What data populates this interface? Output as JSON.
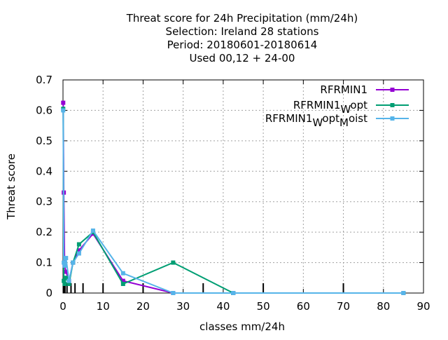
{
  "chart_data": {
    "type": "line",
    "title_lines": [
      "Threat score  for 24h Precipitation (mm/24h)",
      "Selection: Ireland      28 stations",
      "Period: 20180601-20180614",
      "Used  00,12  + 24-00"
    ],
    "xlabel": "classes mm/24h",
    "ylabel": "Threat score",
    "xlim": [
      0,
      90
    ],
    "ylim": [
      0,
      0.7
    ],
    "xticks": [
      0,
      10,
      20,
      30,
      40,
      50,
      60,
      70,
      80,
      90
    ],
    "yticks": [
      0,
      0.1,
      0.2,
      0.3,
      0.4,
      0.5,
      0.6,
      0.7
    ],
    "grid": true,
    "legend_position": "top-right",
    "class_marks": [
      0.1,
      0.3,
      0.5,
      1,
      2,
      3,
      5,
      10,
      20,
      35,
      50,
      70
    ],
    "series": [
      {
        "name": "RFRMIN1",
        "legend_main": "RFRMIN1",
        "legend_sub1": "",
        "legend_mid": "",
        "legend_sub2": "",
        "legend_tail": "",
        "color": "#9400d3",
        "x": [
          0.05,
          0.2,
          0.4,
          0.75,
          1.5,
          2.5,
          4,
          7.5,
          15,
          27.5,
          42.5,
          85
        ],
        "y": [
          0.625,
          0.33,
          0.09,
          0.07,
          0.04,
          0.1,
          0.14,
          0.195,
          0.04,
          0.0,
          0.0,
          0.0
        ]
      },
      {
        "name": "RFRMIN1 W opt",
        "legend_main": "RFRMIN1",
        "legend_sub1": "W",
        "legend_mid": "opt",
        "legend_sub2": "",
        "legend_tail": "",
        "color": "#009e73",
        "x": [
          0.05,
          0.2,
          0.4,
          0.75,
          1.5,
          2.5,
          4,
          7.5,
          15,
          27.5,
          42.5,
          85
        ],
        "y": [
          0.605,
          0.04,
          0.03,
          0.05,
          0.03,
          0.1,
          0.16,
          0.2,
          0.03,
          0.1,
          0.0,
          0.0
        ]
      },
      {
        "name": "RFRMIN1 W opt M oist",
        "legend_main": "RFRMIN1",
        "legend_sub1": "W",
        "legend_mid": "opt",
        "legend_sub2": "M",
        "legend_tail": "oist",
        "color": "#56b4e9",
        "x": [
          0.05,
          0.2,
          0.4,
          0.75,
          1.5,
          2.5,
          4,
          7.5,
          15,
          27.5,
          42.5,
          85
        ],
        "y": [
          0.6,
          0.1,
          0.09,
          0.115,
          0.04,
          0.1,
          0.13,
          0.205,
          0.065,
          0.0,
          0.0,
          0.0
        ]
      }
    ]
  }
}
